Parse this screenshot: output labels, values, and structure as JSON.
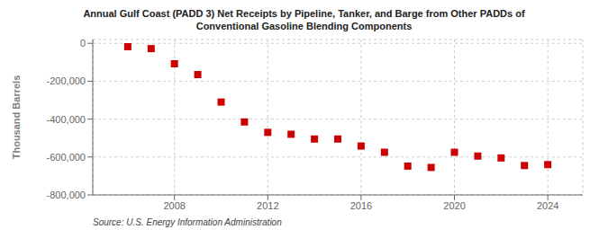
{
  "chart_data": {
    "type": "scatter",
    "title": "Annual Gulf Coast (PADD 3) Net Receipts by Pipeline, Tanker, and Barge from Other PADDs of\nConventional Gasoline Blending Components",
    "ylabel": "Thousand Barrels",
    "annotations": [
      "Source: U.S. Energy Information Administration"
    ],
    "x": [
      2006,
      2007,
      2008,
      2009,
      2010,
      2011,
      2012,
      2013,
      2014,
      2015,
      2016,
      2017,
      2018,
      2019,
      2020,
      2021,
      2022,
      2023,
      2024
    ],
    "values": [
      -18000,
      -28000,
      -108000,
      -165000,
      -310000,
      -415000,
      -470000,
      -480000,
      -505000,
      -505000,
      -542000,
      -575000,
      -648000,
      -655000,
      -575000,
      -595000,
      -605000,
      -645000,
      -640000
    ],
    "color": "#cc0000",
    "marker": "square",
    "xlim": [
      2004.5,
      2025.5
    ],
    "ylim": [
      -800000,
      20000
    ],
    "xticks": [
      2008,
      2012,
      2016,
      2020,
      2024
    ],
    "yticks": [
      0,
      {
        "value": -200000,
        "label": "-200,000"
      },
      {
        "value": -400000,
        "label": "-400,000"
      },
      {
        "value": -600000,
        "label": "-600,000"
      },
      {
        "value": -800000,
        "label": "-800,000"
      }
    ],
    "grid": true
  }
}
